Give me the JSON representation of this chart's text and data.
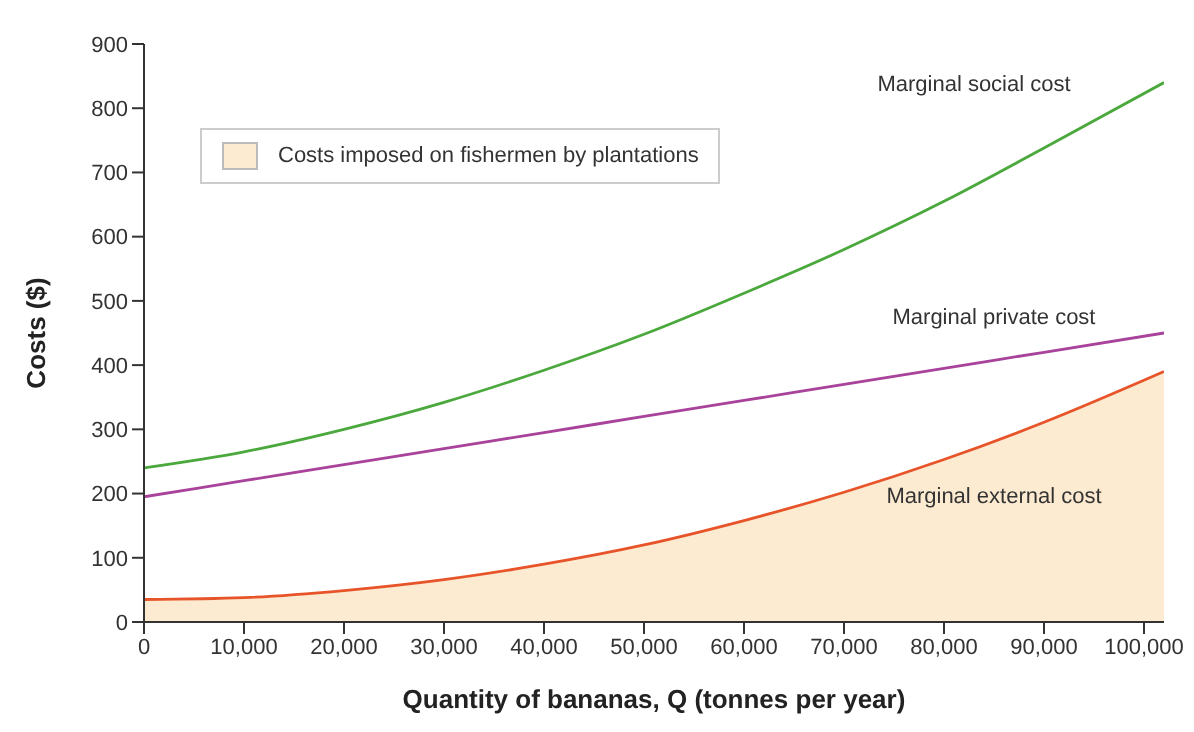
{
  "chart_data": {
    "type": "line",
    "xlabel": "Quantity of bananas, Q (tonnes per year)",
    "ylabel": "Costs ($)",
    "x": [
      0,
      10000,
      20000,
      30000,
      40000,
      50000,
      60000,
      70000,
      80000,
      90000,
      102000
    ],
    "xlim": [
      0,
      102000
    ],
    "xticks": [
      {
        "value": 0,
        "label": "0"
      },
      {
        "value": 10000,
        "label": "10,000"
      },
      {
        "value": 20000,
        "label": "20,000"
      },
      {
        "value": 30000,
        "label": "30,000"
      },
      {
        "value": 40000,
        "label": "40,000"
      },
      {
        "value": 50000,
        "label": "50,000"
      },
      {
        "value": 60000,
        "label": "60,000"
      },
      {
        "value": 70000,
        "label": "70,000"
      },
      {
        "value": 80000,
        "label": "80,000"
      },
      {
        "value": 90000,
        "label": "90,000"
      },
      {
        "value": 100000,
        "label": "100,000"
      }
    ],
    "ylim": [
      0,
      900
    ],
    "yticks": [
      0,
      100,
      200,
      300,
      400,
      500,
      600,
      700,
      800,
      900
    ],
    "series": [
      {
        "name": "Marginal social cost",
        "color": "#4aa83c",
        "values": [
          240,
          265,
          300,
          342,
          392,
          448,
          512,
          580,
          655,
          738,
          840
        ]
      },
      {
        "name": "Marginal private cost",
        "color": "#a8429a",
        "values": [
          195,
          220,
          245,
          270,
          295,
          320,
          345,
          370,
          395,
          420,
          450
        ]
      },
      {
        "type": "area",
        "name": "Marginal external cost",
        "color": "#e8542a",
        "values": [
          35,
          38,
          49,
          66,
          90,
          120,
          158,
          202,
          253,
          311,
          390
        ]
      }
    ],
    "legend_title": "Costs imposed on fishermen by plantations",
    "grid": false,
    "marker": "none",
    "line_style": "solid"
  }
}
